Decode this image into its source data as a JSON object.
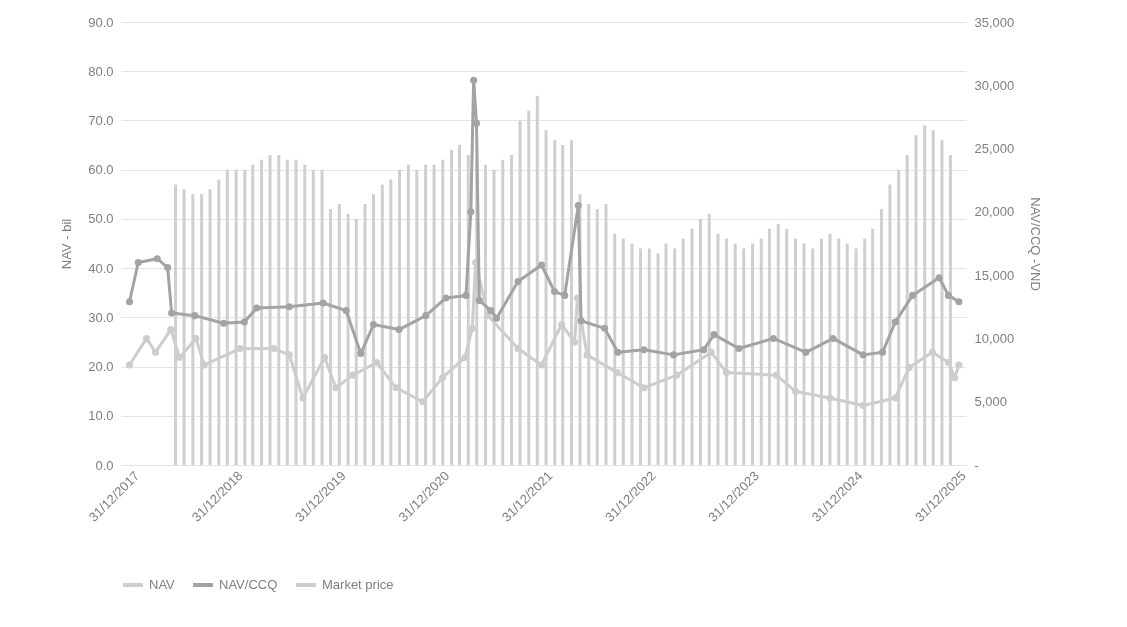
{
  "chart_data": {
    "type": "bar",
    "xlabel": null,
    "ylabel": "NAV - bil",
    "y2label": "NAV/CCQ -VND",
    "xlim": [
      "2017-11-20",
      "2026-01-25"
    ],
    "xticks": [
      {
        "value": "2017-12-31",
        "label": "31/12/2017"
      },
      {
        "value": "2018-12-31",
        "label": "31/12/2018"
      },
      {
        "value": "2019-12-31",
        "label": "31/12/2019"
      },
      {
        "value": "2020-12-31",
        "label": "31/12/2020"
      },
      {
        "value": "2021-12-31",
        "label": "31/12/2021"
      },
      {
        "value": "2022-12-31",
        "label": "31/12/2022"
      },
      {
        "value": "2023-12-31",
        "label": "31/12/2023"
      },
      {
        "value": "2024-12-31",
        "label": "31/12/2024"
      },
      {
        "value": "2025-12-31",
        "label": "31/12/2025"
      }
    ],
    "ylim": [
      0,
      90
    ],
    "yticks": [
      {
        "value": 0,
        "label": "0.0"
      },
      {
        "value": 10,
        "label": "10.0"
      },
      {
        "value": 20,
        "label": "20.0"
      },
      {
        "value": 30,
        "label": "30.0"
      },
      {
        "value": 40,
        "label": "40.0"
      },
      {
        "value": 50,
        "label": "50.0"
      },
      {
        "value": 60,
        "label": "60.0"
      },
      {
        "value": 70,
        "label": "70.0"
      },
      {
        "value": 80,
        "label": "80.0"
      },
      {
        "value": 90,
        "label": "90.0"
      }
    ],
    "y2lim": [
      0,
      35000
    ],
    "y2ticks": [
      {
        "value": 0,
        "label": "-"
      },
      {
        "value": 5000,
        "label": "5,000"
      },
      {
        "value": 10000,
        "label": "10,000"
      },
      {
        "value": 15000,
        "label": "15,000"
      },
      {
        "value": 20000,
        "label": "20,000"
      },
      {
        "value": 25000,
        "label": "25,000"
      },
      {
        "value": 30000,
        "label": "30,000"
      },
      {
        "value": 35000,
        "label": "35,000"
      }
    ],
    "grid": "y",
    "legend": "bottom",
    "marker": "circle",
    "series": [
      {
        "name": "NAV",
        "color": "#cfcfcf",
        "x": [
          "2018-06",
          "2018-07",
          "2018-08",
          "2018-09",
          "2018-10",
          "2018-11",
          "2018-12",
          "2019-01",
          "2019-02",
          "2019-03",
          "2019-04",
          "2019-05",
          "2019-06",
          "2019-07",
          "2019-08",
          "2019-09",
          "2019-10",
          "2019-11",
          "2019-12",
          "2020-01",
          "2020-02",
          "2020-03",
          "2020-04",
          "2020-05",
          "2020-06",
          "2020-07",
          "2020-08",
          "2020-09",
          "2020-10",
          "2020-11",
          "2020-12",
          "2021-01",
          "2021-02",
          "2021-03",
          "2021-04",
          "2021-05",
          "2021-06",
          "2021-07",
          "2021-08",
          "2021-09",
          "2021-10",
          "2021-11",
          "2021-12",
          "2022-01",
          "2022-02",
          "2022-03",
          "2022-04",
          "2022-05",
          "2022-06",
          "2022-07",
          "2022-08",
          "2022-09",
          "2022-10",
          "2022-11",
          "2022-12",
          "2023-01",
          "2023-02",
          "2023-03",
          "2023-04",
          "2023-05",
          "2023-06",
          "2023-07",
          "2023-08",
          "2023-09",
          "2023-10",
          "2023-11",
          "2023-12",
          "2024-01",
          "2024-02",
          "2024-03",
          "2024-04",
          "2024-05",
          "2024-06",
          "2024-07",
          "2024-08",
          "2024-09",
          "2024-10",
          "2024-11",
          "2024-12",
          "2025-01",
          "2025-02",
          "2025-03",
          "2025-04",
          "2025-05",
          "2025-06",
          "2025-07",
          "2025-08",
          "2025-09",
          "2025-10",
          "2025-11",
          "2025-12"
        ],
        "values": [
          57,
          56,
          55,
          55,
          56,
          58,
          60,
          60,
          60,
          61,
          62,
          63,
          63,
          62,
          62,
          61,
          60,
          60,
          52,
          53,
          51,
          50,
          53,
          55,
          57,
          58,
          60,
          61,
          60,
          61,
          61,
          62,
          64,
          65,
          63,
          62,
          61,
          60,
          62,
          63,
          70,
          72,
          75,
          68,
          66,
          65,
          66,
          55,
          53,
          52,
          53,
          47,
          46,
          45,
          44,
          44,
          43,
          45,
          44,
          46,
          48,
          50,
          51,
          47,
          46,
          45,
          44,
          45,
          46,
          48,
          49,
          48,
          46,
          45,
          44,
          46,
          47,
          46,
          45,
          44,
          46,
          48,
          52,
          57,
          60,
          63,
          67,
          69,
          68,
          66,
          63
        ]
      },
      {
        "name": "NAV/CCQ",
        "type": "line",
        "axis": "y2",
        "color": "#a3a3a3",
        "x": [
          "2017-12-20",
          "2018-01-20",
          "2018-03-28",
          "2018-05-04",
          "2018-05-18",
          "2018-08-08",
          "2018-11-18",
          "2019-01-30",
          "2019-03-15",
          "2019-07-08",
          "2019-11-05",
          "2020-01-25",
          "2020-03-17",
          "2020-05-01",
          "2020-07-30",
          "2020-11-02",
          "2021-01-12",
          "2021-03-24",
          "2021-04-10",
          "2021-04-20",
          "2021-04-30",
          "2021-05-10",
          "2021-06-20",
          "2021-07-10",
          "2021-09-24",
          "2021-12-16",
          "2022-01-31",
          "2022-03-08",
          "2022-04-25",
          "2022-05-05",
          "2022-07-27",
          "2022-09-12",
          "2022-12-13",
          "2023-03-28",
          "2023-07-12",
          "2023-08-18",
          "2023-11-14",
          "2024-03-15",
          "2024-07-08",
          "2024-10-12",
          "2025-01-26",
          "2025-04-05",
          "2025-05-20",
          "2025-07-20",
          "2025-10-22",
          "2025-11-24",
          "2025-12-31"
        ],
        "values": [
          12900,
          16000,
          16300,
          15600,
          12000,
          11800,
          11200,
          11300,
          12400,
          12500,
          12800,
          12200,
          8800,
          11100,
          10700,
          11800,
          13200,
          13400,
          20000,
          30400,
          27000,
          13000,
          12200,
          11600,
          14500,
          15800,
          13700,
          13400,
          20500,
          11400,
          10800,
          8900,
          9100,
          8700,
          9100,
          10300,
          9200,
          10000,
          8900,
          10000,
          8700,
          8900,
          11300,
          13400,
          14800,
          13400,
          12900
        ]
      },
      {
        "name": "Market price",
        "type": "line",
        "axis": "y2",
        "color": "#cdcdcd",
        "x": [
          "2017-12-20",
          "2018-02-18",
          "2018-03-22",
          "2018-05-15",
          "2018-06-15",
          "2018-08-12",
          "2018-09-10",
          "2019-01-15",
          "2019-05-15",
          "2019-07-08",
          "2019-08-25",
          "2019-11-10",
          "2019-12-20",
          "2020-02-18",
          "2020-05-12",
          "2020-07-20",
          "2020-10-22",
          "2020-12-31",
          "2021-03-20",
          "2021-04-15",
          "2021-04-27",
          "2021-06-10",
          "2021-09-24",
          "2021-12-16",
          "2022-02-25",
          "2022-04-12",
          "2022-04-22",
          "2022-05-26",
          "2022-09-10",
          "2022-12-13",
          "2023-04-08",
          "2023-08-08",
          "2023-10-01",
          "2024-03-25",
          "2024-06-02",
          "2024-10-01",
          "2025-01-26",
          "2025-05-20",
          "2025-07-08",
          "2025-09-28",
          "2025-11-24",
          "2025-12-16",
          "2025-12-31"
        ],
        "values": [
          7900,
          10000,
          8900,
          10700,
          8500,
          10000,
          7900,
          9200,
          9200,
          8700,
          5300,
          8500,
          6100,
          7100,
          8100,
          6100,
          5000,
          6900,
          8500,
          10800,
          16000,
          11800,
          9200,
          7900,
          11100,
          9700,
          13200,
          8700,
          7300,
          6100,
          7100,
          8900,
          7300,
          7100,
          5800,
          5300,
          4700,
          5300,
          7700,
          8900,
          8100,
          6900,
          7900
        ]
      }
    ]
  }
}
